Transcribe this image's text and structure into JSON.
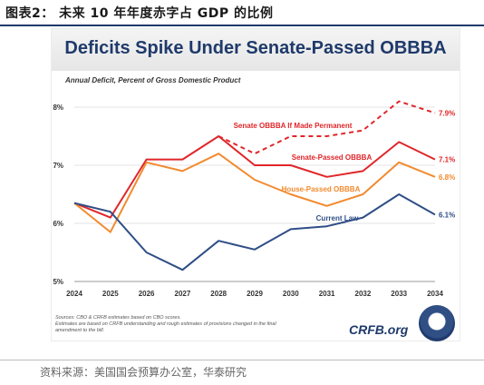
{
  "figure_caption": "图表2： 未来 10 年年度赤字占 GDP 的比例",
  "source_note": "资料来源：美国国会预算办公室，华泰研究",
  "brand_text": "CRFB.org",
  "footnote_lines": [
    "Sources: CBO & CRFB estimates based on CBO scores.",
    "Estimates are based on CRFB understanding and rough estimates of provisions changed in the final",
    "amendment to the bill."
  ],
  "chart_data": {
    "type": "line",
    "title": "Deficits Spike Under Senate-Passed OBBBA",
    "subtitle": "Annual Deficit, Percent of Gross Domestic Product",
    "x": [
      "2024",
      "2025",
      "2026",
      "2027",
      "2028",
      "2029",
      "2030",
      "2031",
      "2032",
      "2033",
      "2034"
    ],
    "ylim": [
      5,
      8
    ],
    "yticks": [
      "5%",
      "6%",
      "7%",
      "8%"
    ],
    "grid": true,
    "series": [
      {
        "name": "Senate OBBBA If Made Permanent",
        "color": "#e0262a",
        "style": "dashed",
        "values": [
          null,
          null,
          null,
          null,
          7.5,
          7.2,
          7.5,
          7.5,
          7.6,
          8.1,
          7.9
        ],
        "end_label": "7.9%"
      },
      {
        "name": "Senate-Passed OBBBA",
        "color": "#e0262a",
        "style": "solid",
        "values": [
          6.35,
          6.1,
          7.1,
          7.1,
          7.5,
          7.0,
          7.0,
          6.8,
          6.9,
          7.4,
          7.1
        ],
        "end_label": "7.1%"
      },
      {
        "name": "House-Passed OBBBA",
        "color": "#f28a2e",
        "style": "solid",
        "values": [
          6.35,
          5.85,
          7.05,
          6.9,
          7.2,
          6.75,
          6.5,
          6.3,
          6.5,
          7.05,
          6.8
        ],
        "end_label": "6.8%"
      },
      {
        "name": "Current Law",
        "color": "#2f4e86",
        "style": "solid",
        "values": [
          6.35,
          6.2,
          5.5,
          5.2,
          5.7,
          5.55,
          5.9,
          5.95,
          6.1,
          6.5,
          6.15
        ],
        "end_label": "6.1%"
      }
    ]
  }
}
